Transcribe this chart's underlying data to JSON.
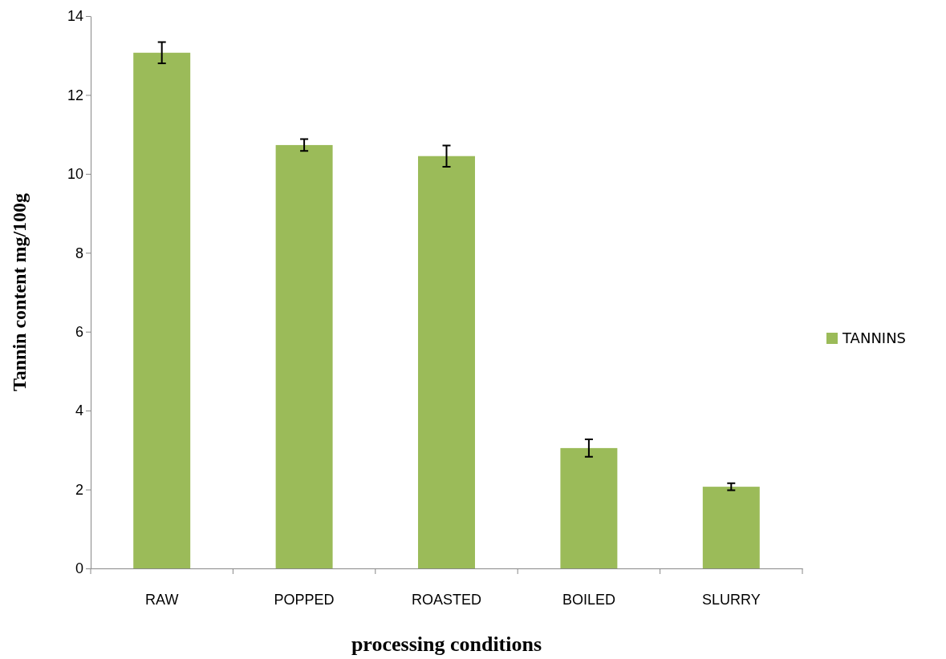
{
  "chart_data": {
    "type": "bar",
    "xlabel": "processing conditions",
    "ylabel": "Tannin content mg/100g",
    "categories": [
      "RAW",
      "POPPED",
      "ROASTED",
      "BOILED",
      "SLURRY"
    ],
    "series": [
      {
        "name": "TANNINS",
        "color": "#9bbb59",
        "values": [
          13.07,
          10.73,
          10.45,
          3.05,
          2.07
        ],
        "errors": [
          0.27,
          0.15,
          0.27,
          0.22,
          0.09
        ]
      }
    ],
    "ylim": [
      0,
      14
    ],
    "yticks": [
      0,
      2,
      4,
      6,
      8,
      10,
      12,
      14
    ],
    "grid": false,
    "legend": "right"
  }
}
